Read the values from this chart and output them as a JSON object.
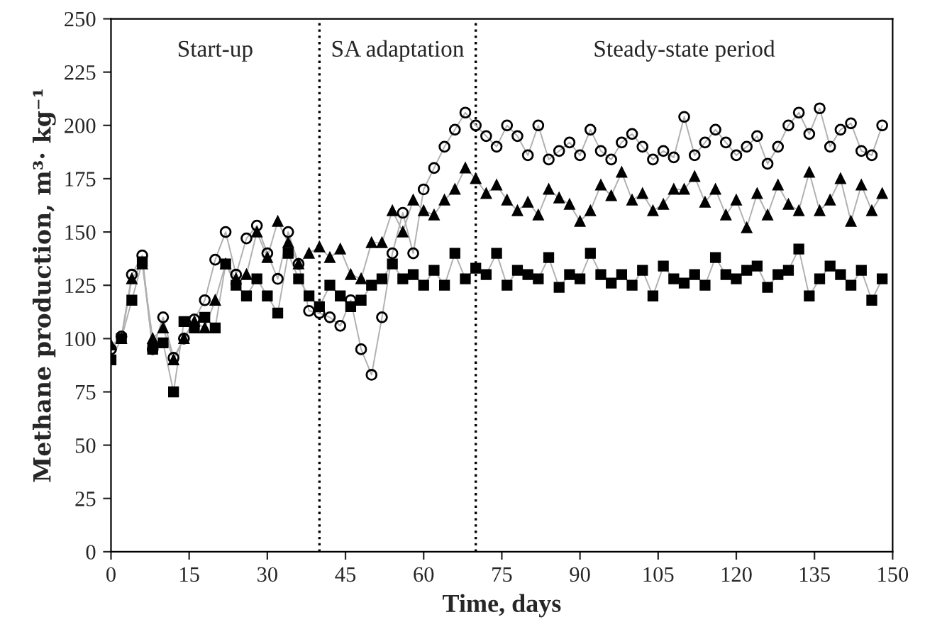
{
  "chart_data": {
    "type": "line",
    "xlabel": "Time, days",
    "ylabel": "Methane production, m³· kg⁻¹",
    "x": [
      0,
      2,
      4,
      6,
      8,
      10,
      12,
      14,
      16,
      18,
      20,
      22,
      24,
      26,
      28,
      30,
      32,
      34,
      36,
      38,
      40,
      42,
      44,
      46,
      48,
      50,
      52,
      54,
      56,
      58,
      60,
      62,
      64,
      66,
      68,
      70,
      72,
      74,
      76,
      78,
      80,
      82,
      84,
      86,
      88,
      90,
      92,
      94,
      96,
      98,
      100,
      102,
      104,
      106,
      108,
      110,
      112,
      114,
      116,
      118,
      120,
      122,
      124,
      126,
      128,
      130,
      132,
      134,
      136,
      138,
      140,
      142,
      144,
      146,
      148
    ],
    "series": [
      {
        "color": "#000000",
        "marker": "circle",
        "values": [
          95,
          101,
          130,
          139,
          95,
          110,
          91,
          100,
          109,
          118,
          137,
          150,
          130,
          147,
          153,
          140,
          128,
          150,
          135,
          113,
          112,
          110,
          106,
          118,
          95,
          83,
          110,
          140,
          159,
          140,
          170,
          180,
          190,
          198,
          206,
          200,
          195,
          190,
          200,
          195,
          186,
          200,
          184,
          188,
          192,
          186,
          198,
          188,
          184,
          192,
          196,
          190,
          184,
          188,
          185,
          204,
          186,
          192,
          198,
          192,
          186,
          190,
          195,
          182,
          190,
          200,
          206,
          196,
          208,
          190,
          198,
          201,
          188,
          186,
          200
        ]
      },
      {
        "color": "#000000",
        "marker": "triangle",
        "values": [
          97,
          100,
          128,
          135,
          100,
          105,
          90,
          100,
          108,
          105,
          118,
          135,
          128,
          130,
          150,
          138,
          155,
          145,
          135,
          140,
          143,
          138,
          142,
          130,
          128,
          145,
          145,
          160,
          150,
          165,
          160,
          158,
          165,
          170,
          180,
          175,
          168,
          172,
          165,
          160,
          164,
          158,
          170,
          166,
          163,
          155,
          160,
          172,
          167,
          178,
          165,
          168,
          160,
          163,
          170,
          170,
          176,
          164,
          170,
          158,
          165,
          152,
          168,
          158,
          172,
          163,
          160,
          178,
          160,
          165,
          175,
          155,
          172,
          160,
          168
        ]
      },
      {
        "color": "#000000",
        "marker": "square",
        "values": [
          90,
          100,
          118,
          136,
          95,
          98,
          75,
          108,
          105,
          110,
          105,
          135,
          125,
          120,
          128,
          120,
          112,
          140,
          128,
          120,
          115,
          125,
          120,
          115,
          118,
          125,
          128,
          135,
          128,
          130,
          125,
          132,
          125,
          140,
          128,
          133,
          130,
          140,
          125,
          132,
          130,
          128,
          138,
          124,
          130,
          128,
          140,
          130,
          126,
          130,
          125,
          132,
          120,
          134,
          128,
          126,
          130,
          125,
          138,
          130,
          128,
          132,
          134,
          124,
          130,
          132,
          142,
          120,
          128,
          134,
          130,
          125,
          132,
          118,
          128
        ]
      }
    ],
    "xlim": [
      0,
      150
    ],
    "xticks": [
      0,
      15,
      30,
      45,
      60,
      75,
      90,
      105,
      120,
      135,
      150
    ],
    "ylim": [
      0,
      250
    ],
    "yticks": [
      0,
      25,
      50,
      75,
      100,
      125,
      150,
      175,
      200,
      225,
      250
    ],
    "grid": false,
    "legend": false,
    "ref_lines": [
      {
        "axis": "x",
        "value": 40,
        "line_style": "dotted"
      },
      {
        "axis": "x",
        "value": 70,
        "line_style": "dotted"
      }
    ],
    "annotations": [
      "Start-up",
      "SA adaptation",
      "Steady-state period"
    ]
  }
}
